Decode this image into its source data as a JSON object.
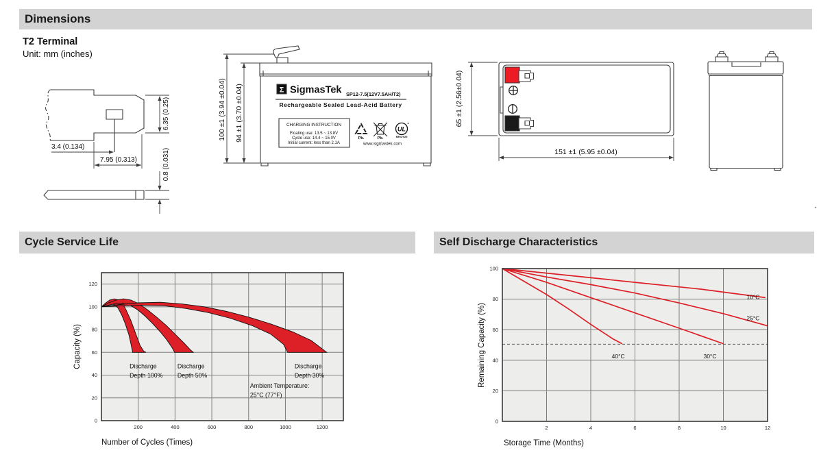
{
  "headers": {
    "dimensions": "Dimensions",
    "cycle_service_life": "Cycle Service Life",
    "self_discharge": "Self Discharge Characteristics"
  },
  "terminal_section": {
    "terminal_type": "T2 Terminal",
    "unit_note": "Unit: mm (inches)"
  },
  "terminal_drawing": {
    "dim_offset": "3.4 (0.134)",
    "dim_width": "7.95 (0.313)",
    "dim_height": "6.35 (0.25)",
    "dim_thickness": "0.8 (0.031)"
  },
  "front_view": {
    "dim_total_height": "100 ±1 (3.94 ±0.04)",
    "dim_container_height": "94 ±1 (3.70 ±0.04)",
    "label": {
      "sigma": "Σ",
      "brand": "SigmasTek",
      "model": "SP12-7.5(12V7.5AH/T2)",
      "product_line": "Rechargeable Sealed Lead-Acid Battery",
      "charging_title": "CHARGING INSTRUCTION",
      "charging_lines": [
        "Floating use: 13.5 ~ 13.8V",
        "Cycle use: 14.4 ~ 15.0V",
        "Initial current: less than 2.1A"
      ],
      "pb_recycle": "Pb.",
      "pb_bin": "Pb.",
      "ul_mark": "UL",
      "ul_code": "MH47929",
      "website": "www.sigmastek.com"
    }
  },
  "top_view": {
    "dim_height": "65 ±1 (2.56±0.04)",
    "dim_length": "151 ±1 (5.95 ±0.04)"
  },
  "colors": {
    "section_bar_bg": "#d3d3d3",
    "plot_bg": "#ededeb",
    "accent_red": "#dd2027",
    "positive_terminal": "#ed1c24",
    "negative_terminal": "#1a1a1a"
  },
  "chart_data": [
    {
      "type": "area",
      "title": "Cycle Service Life",
      "xlabel": "Number of Cycles (Times)",
      "ylabel": "Capacity (%)",
      "xlim": [
        0,
        1315
      ],
      "ylim": [
        0,
        130
      ],
      "xticks": [
        0,
        200,
        400,
        600,
        800,
        1000,
        1200
      ],
      "yticks": [
        0,
        20,
        40,
        60,
        80,
        100,
        120
      ],
      "grid": true,
      "legend": "none",
      "plot_bg": "#ededeb",
      "band_color": "#dd2027",
      "bands": [
        {
          "name": "Discharge Depth 100%",
          "upper": [
            [
              0,
              100
            ],
            [
              20,
              103
            ],
            [
              45,
              106
            ],
            [
              70,
              107
            ],
            [
              95,
              106
            ],
            [
              115,
              103
            ],
            [
              135,
              97
            ],
            [
              160,
              88
            ],
            [
              185,
              77
            ],
            [
              210,
              66
            ],
            [
              230,
              61
            ],
            [
              242,
              60
            ]
          ],
          "lower": [
            [
              0,
              100
            ],
            [
              20,
              101
            ],
            [
              45,
              102.5
            ],
            [
              70,
              102
            ],
            [
              90,
              99
            ],
            [
              110,
              93
            ],
            [
              130,
              85
            ],
            [
              150,
              75
            ],
            [
              162,
              66
            ],
            [
              170,
              60
            ]
          ]
        },
        {
          "name": "Discharge Depth 50%",
          "upper": [
            [
              0,
              100
            ],
            [
              40,
              103.5
            ],
            [
              80,
              106
            ],
            [
              120,
              107
            ],
            [
              160,
              106
            ],
            [
              200,
              103
            ],
            [
              250,
              97.5
            ],
            [
              300,
              91
            ],
            [
              350,
              84
            ],
            [
              400,
              76
            ],
            [
              450,
              68
            ],
            [
              485,
              62
            ],
            [
              500,
              60
            ]
          ],
          "lower": [
            [
              0,
              100
            ],
            [
              40,
              101.5
            ],
            [
              80,
              103
            ],
            [
              120,
              103
            ],
            [
              160,
              101
            ],
            [
              200,
              97
            ],
            [
              240,
              91.5
            ],
            [
              280,
              85
            ],
            [
              320,
              78
            ],
            [
              355,
              71
            ],
            [
              385,
              64
            ],
            [
              398,
              60
            ]
          ]
        },
        {
          "name": "Discharge Depth 30%",
          "upper": [
            [
              0,
              100
            ],
            [
              100,
              102
            ],
            [
              200,
              103.5
            ],
            [
              320,
              104
            ],
            [
              440,
              102.5
            ],
            [
              560,
              100
            ],
            [
              680,
              96
            ],
            [
              800,
              91
            ],
            [
              920,
              85
            ],
            [
              1040,
              78
            ],
            [
              1140,
              70.5
            ],
            [
              1225,
              60
            ]
          ],
          "lower": [
            [
              0,
              100
            ],
            [
              100,
              100.8
            ],
            [
              220,
              101.5
            ],
            [
              340,
              101
            ],
            [
              460,
              98.5
            ],
            [
              580,
              95
            ],
            [
              700,
              90
            ],
            [
              820,
              83.5
            ],
            [
              920,
              76
            ],
            [
              990,
              67
            ],
            [
              1012,
              60
            ]
          ]
        }
      ],
      "annotations": [
        {
          "text": [
            "Discharge",
            "Depth 100%"
          ],
          "x": 153,
          "y": 46
        },
        {
          "text": [
            "Discharge",
            "Depth 50%"
          ],
          "x": 413,
          "y": 46
        },
        {
          "text": [
            "Discharge",
            "Depth 30%"
          ],
          "x": 1050,
          "y": 46
        },
        {
          "text": [
            "Ambient Temperature:",
            "25°C (77°F)"
          ],
          "x": 808,
          "y": 29
        }
      ]
    },
    {
      "type": "line",
      "title": "Self Discharge Characteristics",
      "xlabel": "Storage Time (Months)",
      "ylabel": "Remaining Capacity (%)",
      "xlim": [
        0,
        12
      ],
      "ylim": [
        0,
        100
      ],
      "xticks": [
        0,
        2,
        4,
        6,
        8,
        10,
        12
      ],
      "yticks": [
        0,
        20,
        40,
        60,
        80,
        100
      ],
      "grid": true,
      "legend": "inline-labels",
      "plot_bg": "#ededeb",
      "line_color": "#dd2027",
      "dashed_line_y": 50.5,
      "series": [
        {
          "name": "10°C",
          "points": [
            [
              0,
              100
            ],
            [
              3,
              95.5
            ],
            [
              6,
              91
            ],
            [
              9,
              86.5
            ],
            [
              11.9,
              81
            ]
          ],
          "label_at": [
            11.05,
            81.5
          ]
        },
        {
          "name": "25°C",
          "points": [
            [
              0,
              100
            ],
            [
              2,
              94.5
            ],
            [
              4,
              89.5
            ],
            [
              6,
              84
            ],
            [
              8,
              77.5
            ],
            [
              10,
              70.5
            ],
            [
              12,
              62.5
            ]
          ],
          "label_at": [
            11.05,
            67.5
          ]
        },
        {
          "name": "30°C",
          "points": [
            [
              0,
              100
            ],
            [
              2,
              91
            ],
            [
              4,
              81
            ],
            [
              6,
              71
            ],
            [
              8,
              61
            ],
            [
              10,
              50.8
            ]
          ],
          "label_at": [
            9.1,
            42.5
          ]
        },
        {
          "name": "40°C",
          "points": [
            [
              0,
              100
            ],
            [
              1,
              91.5
            ],
            [
              2,
              83
            ],
            [
              3,
              73.5
            ],
            [
              4,
              63.5
            ],
            [
              5,
              54
            ],
            [
              5.42,
              50.8
            ]
          ],
          "label_at": [
            4.95,
            42.5
          ]
        }
      ]
    }
  ]
}
